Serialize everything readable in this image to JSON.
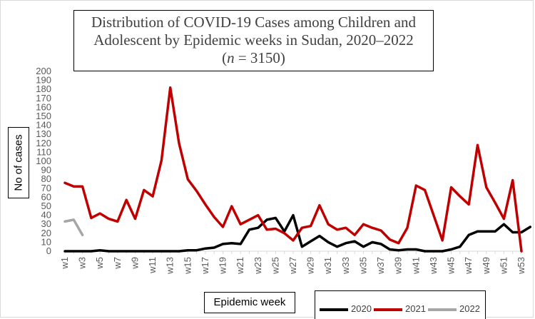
{
  "title": {
    "line1": "Distribution of COVID-19 Cases among Children  and",
    "line2": "Adolescent by Epidemic weeks in Sudan, 2020–2022",
    "line3": "(n = 3150)"
  },
  "chart_data": {
    "type": "line",
    "title": "Distribution of COVID-19 Cases among Children  and Adolescent by Epidemic weeks in Sudan, 2020–2022 (n = 3150)",
    "xlabel": "Epidemic week",
    "ylabel": "No of cases",
    "ylim": [
      0,
      200
    ],
    "yticks": [
      0,
      10,
      20,
      30,
      40,
      50,
      60,
      70,
      80,
      90,
      100,
      110,
      120,
      130,
      140,
      150,
      160,
      170,
      180,
      190,
      200
    ],
    "x_ticklabels": [
      "w1",
      "w3",
      "w5",
      "w7",
      "w9",
      "w11",
      "w13",
      "w15",
      "w17",
      "w19",
      "w21",
      "w23",
      "w25",
      "w27",
      "w29",
      "w31",
      "w33",
      "w35",
      "w37",
      "w39",
      "w41",
      "w43",
      "w45",
      "w47",
      "w49",
      "w51",
      "w53"
    ],
    "grid": false,
    "legend_position": "bottom-right",
    "series": [
      {
        "name": "2020",
        "color": "#000000",
        "values": [
          0,
          0,
          0,
          0,
          1,
          0,
          0,
          0,
          0,
          0,
          0,
          0,
          0,
          0,
          1,
          1,
          3,
          4,
          8,
          9,
          8,
          24,
          26,
          35,
          37,
          22,
          40,
          5,
          11,
          17,
          10,
          5,
          9,
          11,
          5,
          10,
          8,
          2,
          1,
          2,
          2,
          0,
          0,
          0,
          2,
          5,
          18,
          22,
          22,
          22,
          30,
          21,
          21,
          27
        ]
      },
      {
        "name": "2021",
        "color": "#c00000",
        "values": [
          76,
          72,
          72,
          37,
          42,
          36,
          33,
          57,
          36,
          68,
          61,
          101,
          182,
          120,
          80,
          67,
          52,
          38,
          27,
          50,
          30,
          35,
          40,
          24,
          25,
          20,
          12,
          26,
          28,
          51,
          30,
          24,
          26,
          18,
          30,
          26,
          23,
          13,
          9,
          26,
          73,
          68,
          40,
          12,
          71,
          61,
          52,
          118,
          71,
          54,
          36,
          79,
          0
        ]
      },
      {
        "name": "2022",
        "color": "#a6a6a6",
        "values": [
          33,
          35,
          18
        ]
      }
    ]
  },
  "legend": {
    "s2020": "2020",
    "s2021": "2021",
    "s2022": "2022"
  }
}
